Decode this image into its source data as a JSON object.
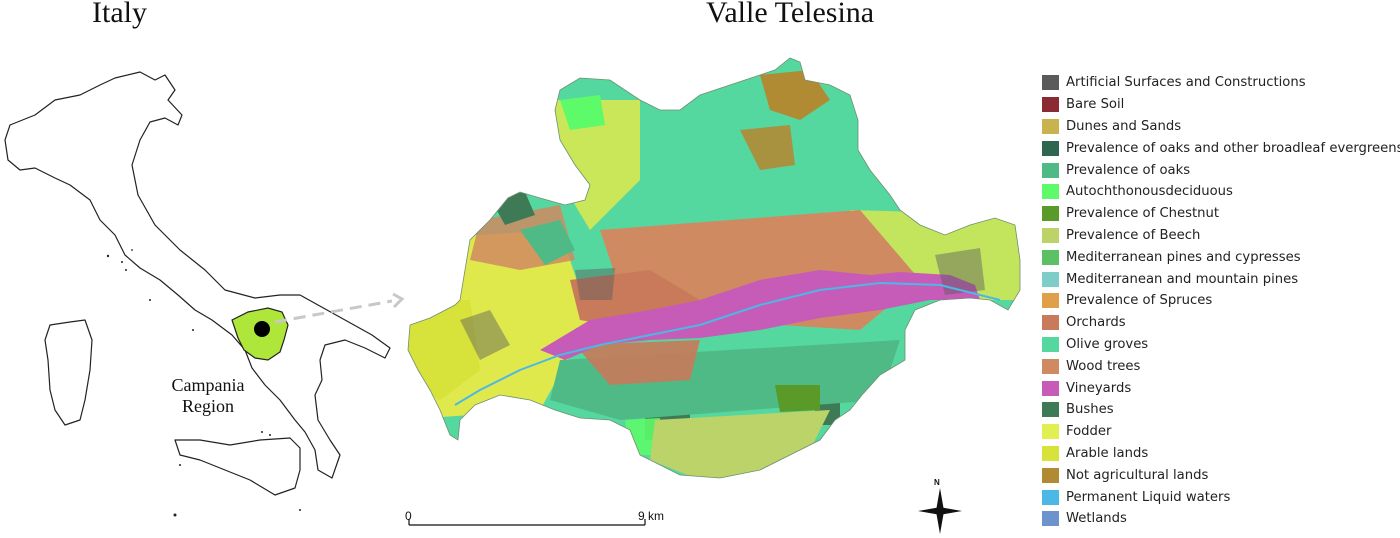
{
  "left_panel": {
    "title": "Italy",
    "region_label_line1": "Campania",
    "region_label_line2": "Region",
    "outline_color": "#222222",
    "region_fill": "#aee73a",
    "marker_color": "#000000",
    "arrow_color": "#c8c8c8"
  },
  "right_panel": {
    "title": "Valle Telesina"
  },
  "scale_bar": {
    "start_label": "0",
    "end_label": "9 km"
  },
  "north_arrow": {
    "label": "N",
    "icon": "compass-rose-icon"
  },
  "legend": [
    {
      "label": "Artificial Surfaces and Constructions",
      "color": "#5a5a5a"
    },
    {
      "label": "Bare Soil",
      "color": "#8a2a33"
    },
    {
      "label": "Dunes and Sands",
      "color": "#c8b34e"
    },
    {
      "label": "Prevalence of oaks and other broadleaf evergreens",
      "color": "#2e6650"
    },
    {
      "label": "Prevalence of oaks",
      "color": "#4fba86"
    },
    {
      "label": "Autochthonousdeciduous",
      "color": "#5dfa6a"
    },
    {
      "label": "Prevalence of Chestnut",
      "color": "#5a9a28"
    },
    {
      "label": "Prevalence of Beech",
      "color": "#bcd36a"
    },
    {
      "label": "Mediterranean pines and cypresses",
      "color": "#5cc065"
    },
    {
      "label": "Mediterranean and mountain pines",
      "color": "#7fcdc9"
    },
    {
      "label": "Prevalence of Spruces",
      "color": "#e0a04a"
    },
    {
      "label": "Orchards",
      "color": "#c97a5a"
    },
    {
      "label": "Olive groves",
      "color": "#55d7a0"
    },
    {
      "label": "Wood trees",
      "color": "#d08a62"
    },
    {
      "label": "Vineyards",
      "color": "#c65bb8"
    },
    {
      "label": "Bushes",
      "color": "#3f7a56"
    },
    {
      "label": "Fodder",
      "color": "#e2ef52"
    },
    {
      "label": "Arable lands",
      "color": "#d7e23a"
    },
    {
      "label": "Not agricultural lands",
      "color": "#b18a34"
    },
    {
      "label": "Permanent Liquid waters",
      "color": "#4cb8e6"
    },
    {
      "label": "Wetlands",
      "color": "#6c93cc"
    }
  ]
}
